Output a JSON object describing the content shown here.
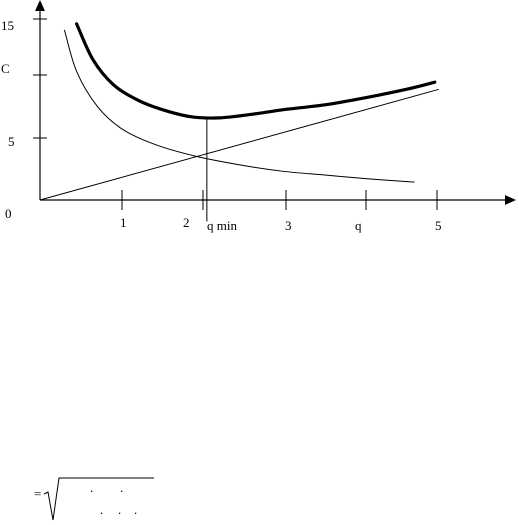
{
  "chart_data": {
    "type": "line",
    "x_tick_labels": [
      "0",
      "1",
      "2",
      "q min",
      "3",
      "q",
      "5"
    ],
    "y_tick_labels": [
      "15",
      "C",
      "5"
    ],
    "xlim": [
      0,
      5.5
    ],
    "ylim": [
      0,
      15.7
    ],
    "grid": false,
    "series": [
      {
        "style": "thick",
        "x": [
          0.45,
          0.65,
          0.9,
          1.2,
          1.5,
          1.85,
          2.2,
          2.6,
          3.0,
          3.5,
          4.0,
          4.5,
          4.85
        ],
        "y": [
          14.8,
          11.8,
          9.7,
          8.4,
          7.6,
          7.0,
          6.9,
          7.2,
          7.6,
          8.0,
          8.6,
          9.3,
          9.9
        ]
      },
      {
        "style": "thin",
        "x": [
          0.3,
          0.45,
          0.7,
          1.0,
          1.4,
          1.9,
          2.5,
          3.0,
          3.5,
          4.0,
          4.6
        ],
        "y": [
          14.3,
          10.8,
          7.9,
          6.0,
          4.7,
          3.7,
          2.9,
          2.4,
          2.1,
          1.8,
          1.5
        ]
      },
      {
        "style": "thin",
        "x": [
          0.0,
          4.9
        ],
        "y": [
          0.0,
          9.3
        ]
      }
    ],
    "qmin": {
      "x": 2.05,
      "y": 6.9
    },
    "formula": {
      "prefix": "=",
      "dots": [
        ".",
        ".",
        ".",
        ".",
        "."
      ]
    }
  }
}
